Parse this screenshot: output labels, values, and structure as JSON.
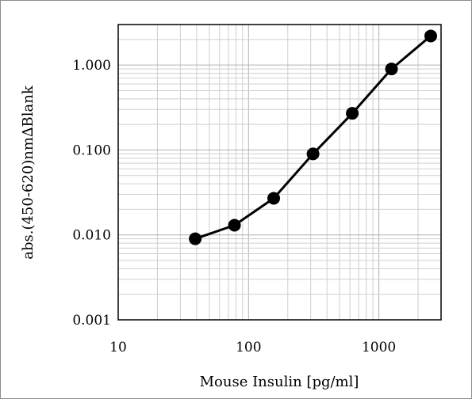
{
  "chart_data": {
    "type": "line",
    "title": "",
    "xlabel": "Mouse Insulin [pg/ml]",
    "ylabel": "abs.(450-620)nm∆Blank",
    "x_scale": "log",
    "y_scale": "log",
    "xlim": [
      10,
      3000
    ],
    "ylim": [
      0.001,
      3
    ],
    "x_ticks": [
      {
        "value": 10,
        "label": "10"
      },
      {
        "value": 100,
        "label": "100"
      },
      {
        "value": 1000,
        "label": "1000"
      }
    ],
    "y_ticks": [
      {
        "value": 0.001,
        "label": "0.001"
      },
      {
        "value": 0.01,
        "label": "0.010"
      },
      {
        "value": 0.1,
        "label": "0.100"
      },
      {
        "value": 1,
        "label": "1.000"
      }
    ],
    "grid": true,
    "legend": "none",
    "series": [
      {
        "color": "#000000",
        "marker": "circle",
        "x": [
          39,
          78,
          156,
          312.5,
          625,
          1250,
          2500
        ],
        "y": [
          0.009,
          0.013,
          0.027,
          0.09,
          0.27,
          0.9,
          2.2
        ]
      }
    ]
  }
}
